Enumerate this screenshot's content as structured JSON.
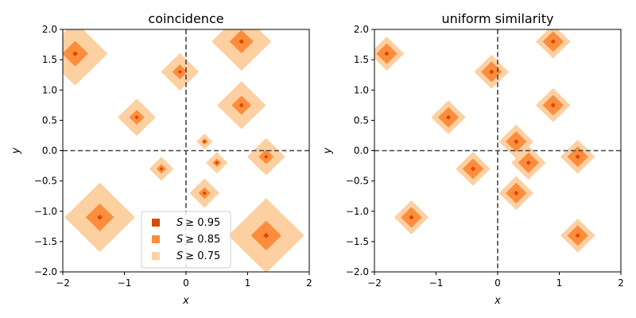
{
  "levels": [
    {
      "threshold": 0.75,
      "color": "#fdd0a2"
    },
    {
      "threshold": 0.85,
      "color": "#fd8d3c"
    },
    {
      "threshold": 0.95,
      "color": "#d94801"
    }
  ],
  "points": [
    {
      "x": -1.8,
      "y": 1.6,
      "s": 1.2
    },
    {
      "x": -0.1,
      "y": 1.3,
      "s": 0.7
    },
    {
      "x": 0.9,
      "y": 1.8,
      "s": 1.1
    },
    {
      "x": -0.8,
      "y": 0.55,
      "s": 0.7
    },
    {
      "x": 0.9,
      "y": 0.75,
      "s": 0.9
    },
    {
      "x": 0.3,
      "y": 0.15,
      "s": 0.3
    },
    {
      "x": 1.3,
      "y": -0.1,
      "s": 0.7
    },
    {
      "x": -0.4,
      "y": -0.3,
      "s": 0.45
    },
    {
      "x": 0.5,
      "y": -0.2,
      "s": 0.4
    },
    {
      "x": 0.3,
      "y": -0.7,
      "s": 0.55
    },
    {
      "x": -1.4,
      "y": -1.1,
      "s": 1.3
    },
    {
      "x": 1.3,
      "y": -1.4,
      "s": 1.4
    }
  ],
  "chart_data": [
    {
      "type": "contour",
      "title": "coincidence",
      "xlabel": "x",
      "ylabel": "y",
      "xlim": [
        -2,
        2
      ],
      "ylim": [
        -2,
        2
      ],
      "xticks": [
        -2,
        -1,
        0,
        1,
        2
      ],
      "yticks": [
        -2.0,
        -1.5,
        -1.0,
        -0.5,
        0.0,
        0.5,
        1.0,
        1.5,
        2.0
      ],
      "xtick_labels": [
        "−2",
        "−1",
        "0",
        "1",
        "2"
      ],
      "ytick_labels": [
        "−2.0",
        "−1.5",
        "−1.0",
        "−0.5",
        "0.0",
        "0.5",
        "1.0",
        "1.5",
        "2.0"
      ],
      "reference_lines": {
        "x": 0,
        "y": 0,
        "style": "dashed"
      },
      "legend": {
        "position": "lower-center",
        "entries": [
          {
            "symbol": "S",
            "label": "≥ 0.95",
            "color": "#d94801"
          },
          {
            "symbol": "S",
            "label": "≥ 0.85",
            "color": "#fd8d3c"
          },
          {
            "symbol": "S",
            "label": "≥ 0.75",
            "color": "#fdd0a2"
          }
        ]
      }
    },
    {
      "type": "contour",
      "title": "uniform similarity",
      "xlabel": "x",
      "ylabel": "y",
      "xlim": [
        -2,
        2
      ],
      "ylim": [
        -2,
        2
      ],
      "xticks": [
        -2,
        -1,
        0,
        1,
        2
      ],
      "yticks": [
        -2.0,
        -1.5,
        -1.0,
        -0.5,
        0.0,
        0.5,
        1.0,
        1.5,
        2.0
      ],
      "xtick_labels": [
        "−2",
        "−1",
        "0",
        "1",
        "2"
      ],
      "ytick_labels": [
        "−2.0",
        "−1.5",
        "−1.0",
        "−0.5",
        "0.0",
        "0.5",
        "1.0",
        "1.5",
        "2.0"
      ],
      "reference_lines": {
        "x": 0,
        "y": 0,
        "style": "dashed"
      }
    }
  ]
}
